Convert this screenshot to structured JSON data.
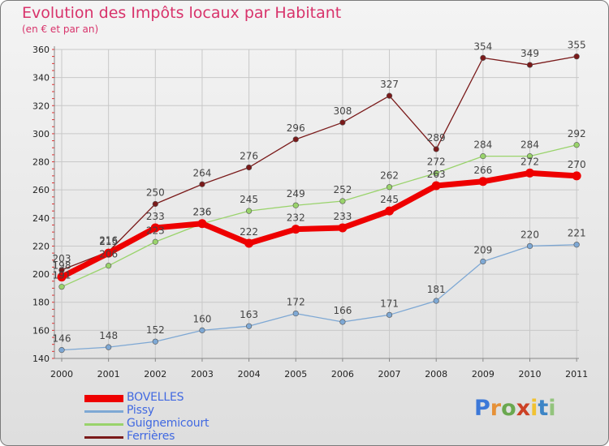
{
  "title": "Evolution des Impôts locaux par Habitant",
  "subtitle": "(en € et par an)",
  "logo": {
    "text": "Proxiti",
    "letter_colors": [
      "#3c78d8",
      "#e69138",
      "#6aa84f",
      "#cc4125",
      "#f1c232",
      "#3d85c6",
      "#93c47d"
    ]
  },
  "chart_data": {
    "type": "line",
    "categories": [
      "2000",
      "2001",
      "2002",
      "2003",
      "2004",
      "2005",
      "2006",
      "2007",
      "2008",
      "2009",
      "2010",
      "2011"
    ],
    "ylim": [
      140,
      360
    ],
    "yticks": [
      140,
      160,
      180,
      200,
      220,
      240,
      260,
      280,
      300,
      320,
      340,
      360
    ],
    "grid": true,
    "legend_position": "bottom-left",
    "series": [
      {
        "name": "Ferrières",
        "color": "#7a1a1a",
        "values": [
          203,
          216,
          250,
          264,
          276,
          296,
          308,
          327,
          289,
          354,
          349,
          355
        ],
        "emphasis": false
      },
      {
        "name": "Guignemicourt",
        "color": "#99d36b",
        "values": [
          191,
          206,
          223,
          236,
          245,
          249,
          252,
          262,
          272,
          284,
          284,
          292
        ],
        "emphasis": false
      },
      {
        "name": "Pissy",
        "color": "#7ea8d4",
        "values": [
          146,
          148,
          152,
          160,
          163,
          172,
          166,
          171,
          181,
          209,
          220,
          221
        ],
        "emphasis": false
      },
      {
        "name": "BOVELLES",
        "color": "#ee0000",
        "values": [
          198,
          215,
          233,
          236,
          222,
          232,
          233,
          245,
          263,
          266,
          272,
          270
        ],
        "emphasis": true
      }
    ],
    "legend_order": [
      "BOVELLES",
      "Pissy",
      "Guignemicourt",
      "Ferrières"
    ]
  }
}
